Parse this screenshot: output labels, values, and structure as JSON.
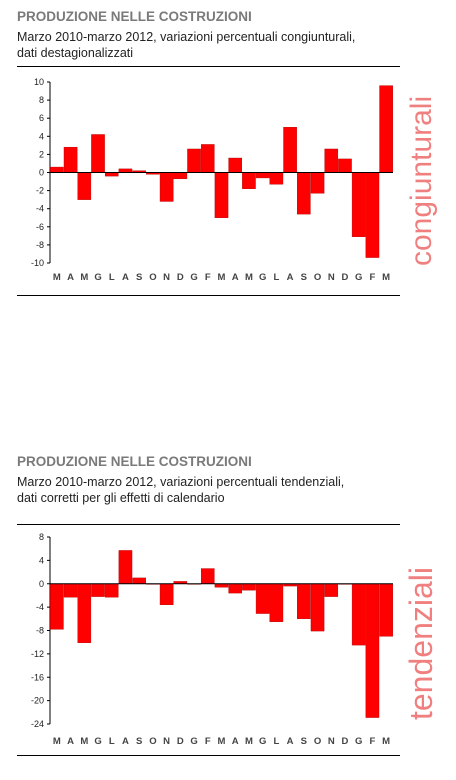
{
  "chart_data": [
    {
      "type": "bar",
      "title": "PRODUZIONE NELLE COSTRUZIONI",
      "subtitle_line1": "Marzo 2010-marzo 2012, variazioni percentuali congiunturali,",
      "subtitle_line2": "dati destagionalizzati",
      "side_label": "congiunturali",
      "categories": [
        "M",
        "A",
        "M",
        "G",
        "L",
        "A",
        "S",
        "O",
        "N",
        "D",
        "G",
        "F",
        "M",
        "A",
        "M",
        "G",
        "L",
        "A",
        "S",
        "O",
        "N",
        "D",
        "G",
        "F",
        "M"
      ],
      "values": [
        0.6,
        2.8,
        -3.0,
        4.2,
        -0.4,
        0.4,
        0.2,
        -0.2,
        -3.2,
        -0.7,
        2.6,
        3.1,
        -5.0,
        1.6,
        -1.8,
        -0.6,
        -1.3,
        5.0,
        -4.6,
        -2.3,
        2.6,
        1.5,
        -7.1,
        -9.4,
        9.6
      ],
      "ylim": [
        -10,
        10
      ],
      "yticks": [
        10,
        8,
        6,
        4,
        2,
        0,
        -2,
        -4,
        -6,
        -8,
        -10
      ],
      "bar_color": "#ff0000",
      "grid": false
    },
    {
      "type": "bar",
      "title": "PRODUZIONE NELLE COSTRUZIONI",
      "subtitle_line1": "Marzo 2010-marzo 2012, variazioni percentuali tendenziali,",
      "subtitle_line2": "dati corretti per gli effetti di calendario",
      "side_label": "tendenziali",
      "categories": [
        "M",
        "A",
        "M",
        "G",
        "L",
        "A",
        "S",
        "O",
        "N",
        "D",
        "G",
        "F",
        "M",
        "A",
        "M",
        "G",
        "L",
        "A",
        "S",
        "O",
        "N",
        "D",
        "G",
        "F",
        "M"
      ],
      "values": [
        -7.8,
        -2.3,
        -10.1,
        -2.2,
        -2.3,
        5.7,
        1.0,
        0.0,
        -3.6,
        0.4,
        0.0,
        2.6,
        -0.6,
        -1.6,
        -1.1,
        -5.1,
        -6.5,
        -0.4,
        -6.0,
        -8.1,
        -2.2,
        0.0,
        -10.5,
        -22.9,
        -9.0
      ],
      "ylim": [
        -24,
        8
      ],
      "yticks": [
        8,
        4,
        0,
        -4,
        -8,
        -12,
        -16,
        -20,
        -24
      ],
      "bar_color": "#ff0000",
      "grid": false
    }
  ]
}
